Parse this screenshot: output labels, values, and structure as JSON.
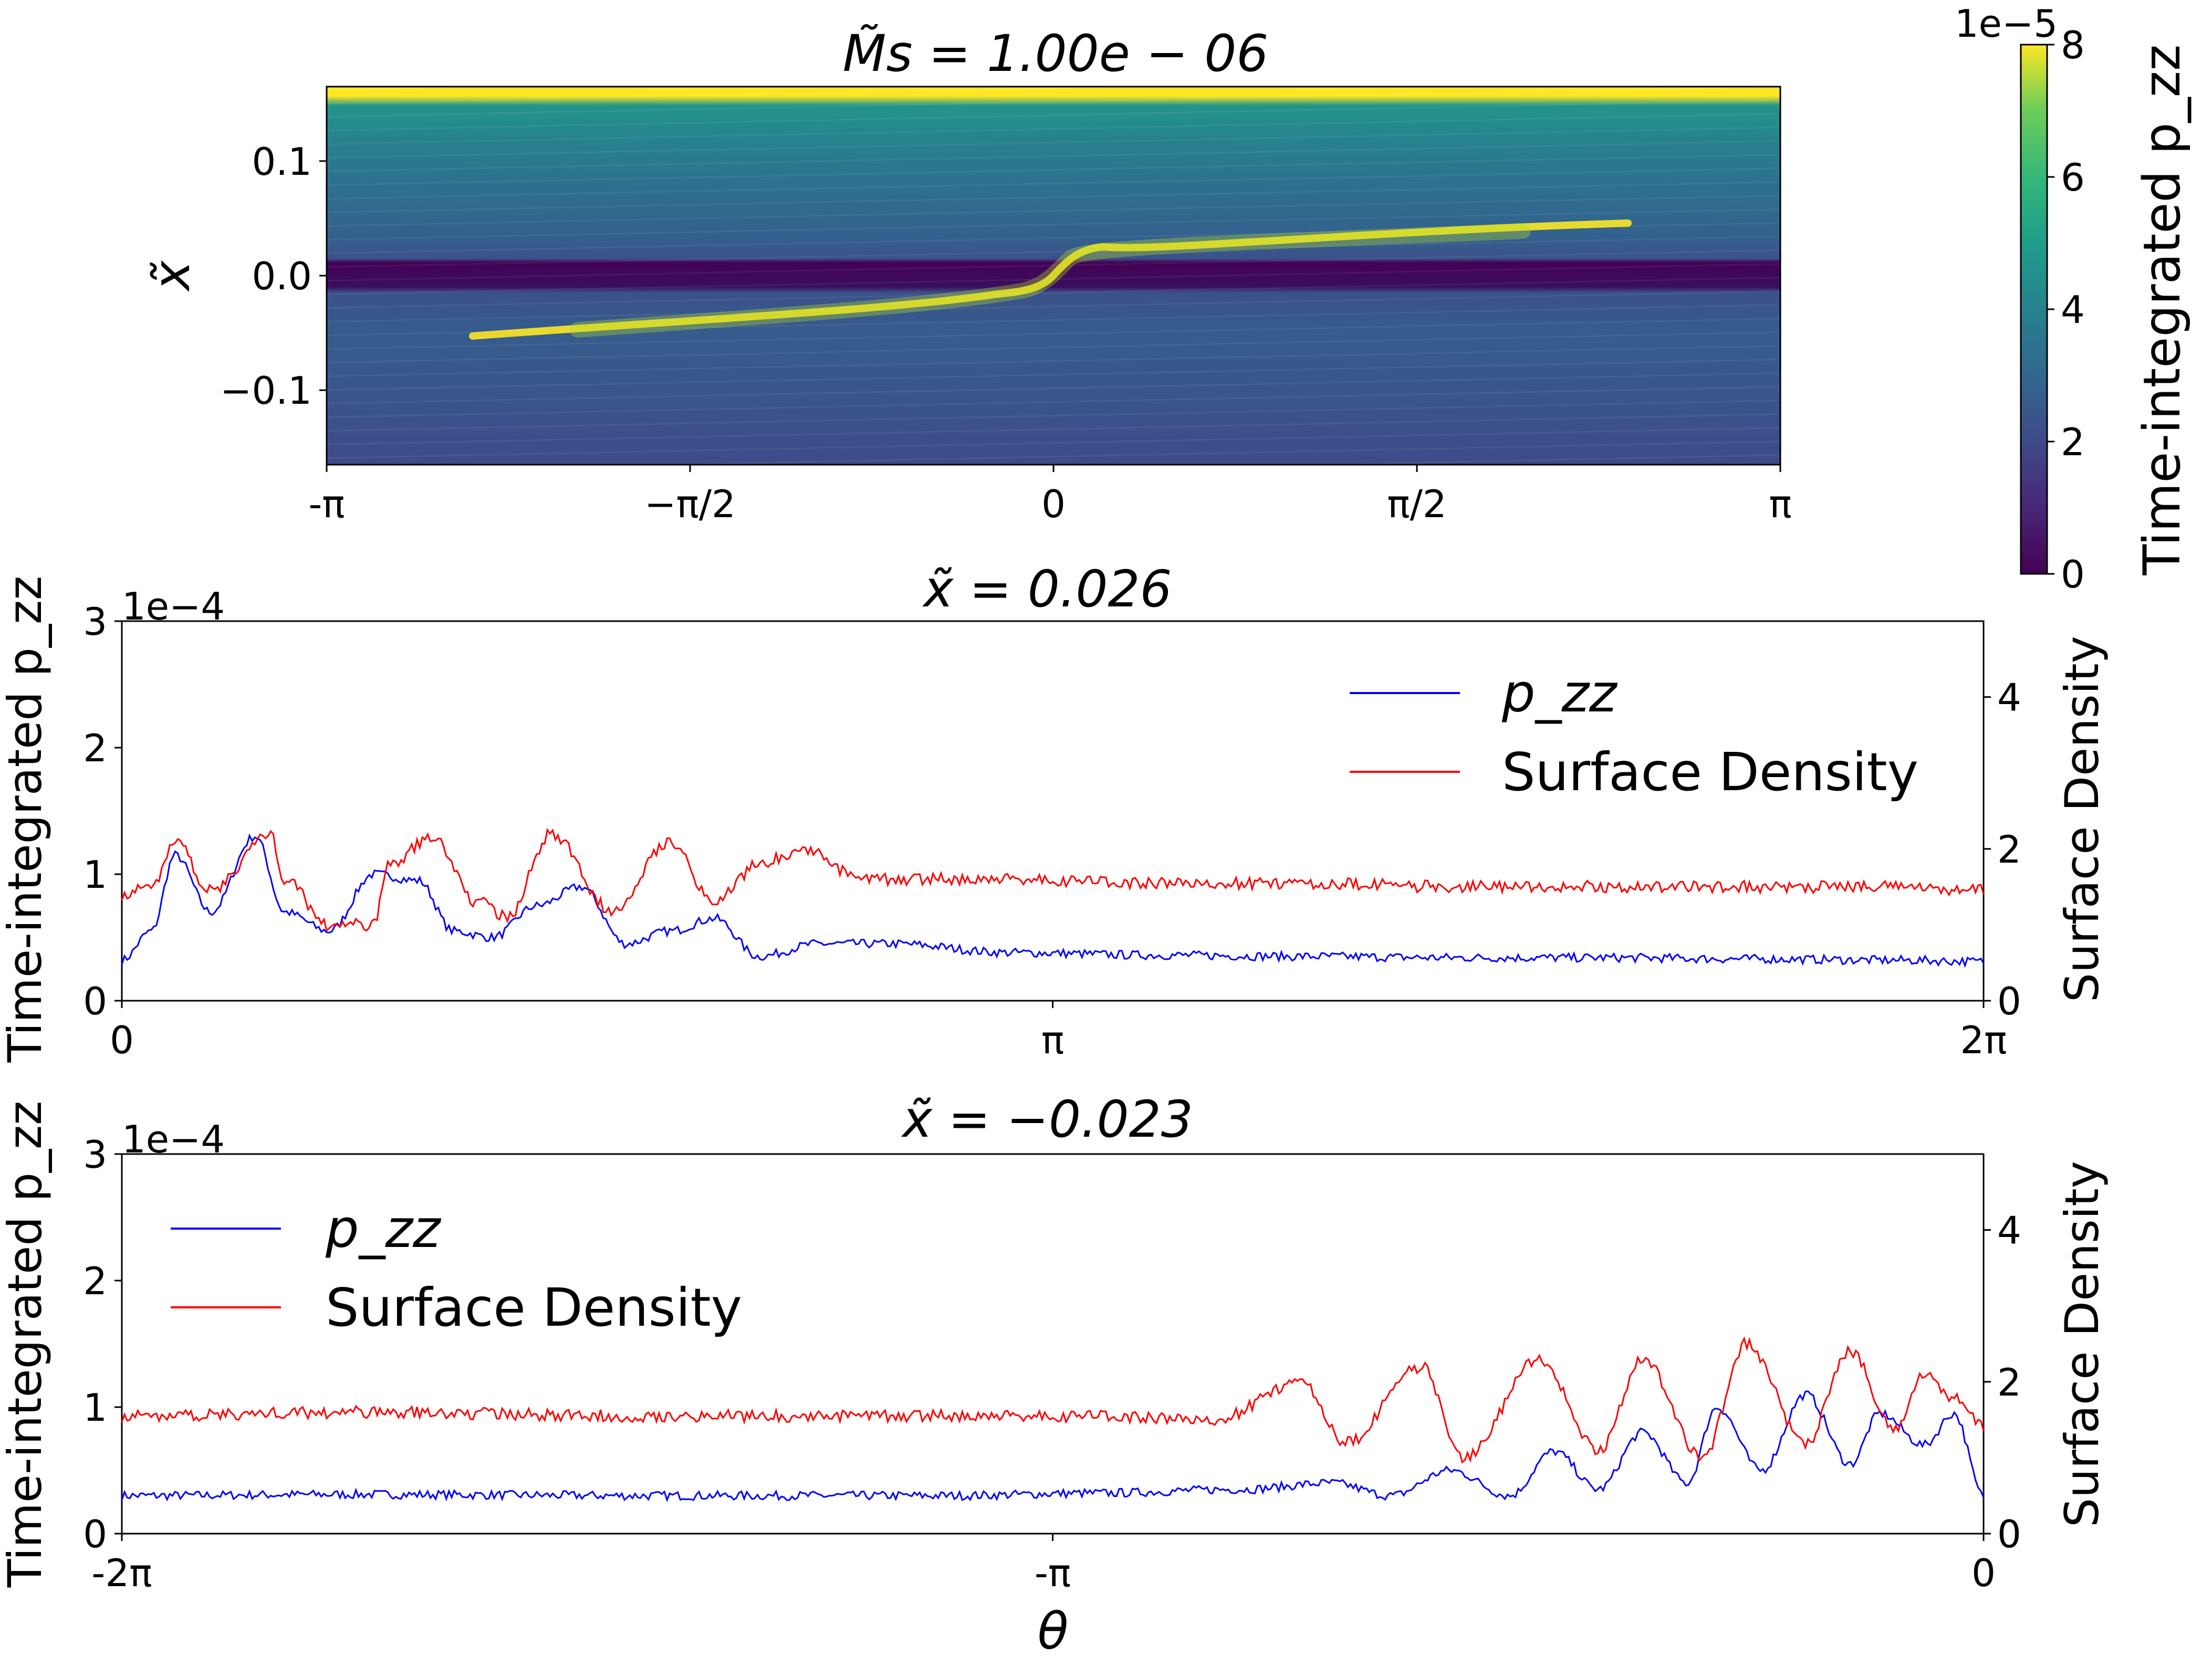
{
  "chart_data": [
    {
      "type": "heatmap",
      "title": "M̃s = 1.00e − 06",
      "ylabel": "x̃",
      "xlim": [
        -3.14159,
        3.14159
      ],
      "ylim": [
        -0.165,
        0.165
      ],
      "x_ticks": [
        "-π",
        "−π/2",
        "0",
        "π/2",
        "π"
      ],
      "y_ticks": [
        "0.1",
        "0.0",
        "−0.1"
      ],
      "y_tick_values": [
        0.1,
        0.0,
        -0.1
      ],
      "colorbar": {
        "label": "Time-integrated p_zz",
        "exponent_label": "1e−5",
        "ticks": [
          "0",
          "2",
          "4",
          "6",
          "8"
        ],
        "range": [
          0,
          8
        ],
        "colormap": "viridis"
      }
    },
    {
      "type": "line",
      "title": "x̃ = 0.026",
      "ylabel": "Time-integrated p_zz",
      "y2label": "Surface Density",
      "y_exponent_label": "1e−4",
      "xlim": [
        0,
        6.2832
      ],
      "ylim": [
        0,
        3
      ],
      "y2lim": [
        0,
        5
      ],
      "x_ticks": [
        "0",
        "π",
        "2π"
      ],
      "y_ticks": [
        "0",
        "1",
        "2",
        "3"
      ],
      "y2_ticks": [
        "0",
        "2",
        "4"
      ],
      "legend_position": "top-right",
      "series": [
        {
          "name": "p_zz",
          "color": "#0000ff",
          "axis": "left",
          "x": [
            0,
            0.1,
            0.18,
            0.3,
            0.45,
            0.55,
            0.7,
            0.85,
            1.0,
            1.12,
            1.25,
            1.4,
            1.55,
            1.7,
            1.85,
            2.0,
            2.15,
            2.35,
            2.6,
            3.0,
            3.5,
            4.0,
            4.5,
            5.0,
            5.5,
            6.0,
            6.2832
          ],
          "values": [
            0.32,
            0.55,
            1.15,
            0.7,
            1.3,
            0.7,
            0.55,
            1.0,
            0.95,
            0.55,
            0.5,
            0.75,
            0.9,
            0.45,
            0.55,
            0.65,
            0.35,
            0.45,
            0.45,
            0.38,
            0.36,
            0.35,
            0.34,
            0.34,
            0.33,
            0.32,
            0.31
          ]
        },
        {
          "name": "Surface Density",
          "color": "#ff0000",
          "axis": "right",
          "x": [
            0,
            0.1,
            0.18,
            0.3,
            0.5,
            0.55,
            0.7,
            0.85,
            0.9,
            1.05,
            1.2,
            1.3,
            1.45,
            1.65,
            1.85,
            2.0,
            2.15,
            2.3,
            2.5,
            2.8,
            3.0,
            3.5,
            4.0,
            4.5,
            5.0,
            5.5,
            6.0,
            6.2832
          ],
          "values": [
            1.4,
            1.5,
            2.1,
            1.45,
            2.2,
            1.6,
            1.0,
            1.0,
            1.8,
            2.15,
            1.3,
            1.1,
            2.2,
            1.2,
            2.1,
            1.3,
            1.8,
            2.0,
            1.6,
            1.6,
            1.6,
            1.55,
            1.55,
            1.5,
            1.5,
            1.5,
            1.5,
            1.45
          ]
        }
      ]
    },
    {
      "type": "line",
      "title": "x̃ = −0.023",
      "xlabel": "θ",
      "ylabel": "Time-integrated p_zz",
      "y2label": "Surface Density",
      "y_exponent_label": "1e−4",
      "xlim": [
        -6.2832,
        0
      ],
      "ylim": [
        0,
        3
      ],
      "y2lim": [
        0,
        5
      ],
      "x_ticks": [
        "-2π",
        "-π",
        "0"
      ],
      "y_ticks": [
        "0",
        "1",
        "2",
        "3"
      ],
      "y2_ticks": [
        "0",
        "2",
        "4"
      ],
      "legend_position": "top-left",
      "series": [
        {
          "name": "p_zz",
          "color": "#0000ff",
          "axis": "left",
          "x": [
            -6.2832,
            -5.5,
            -4.5,
            -3.5,
            -3.0,
            -2.5,
            -2.2,
            -2.0,
            -1.8,
            -1.6,
            -1.45,
            -1.3,
            -1.15,
            -1.0,
            -0.9,
            -0.75,
            -0.6,
            -0.45,
            -0.35,
            -0.2,
            -0.1,
            0
          ],
          "values": [
            0.3,
            0.31,
            0.3,
            0.3,
            0.32,
            0.35,
            0.4,
            0.3,
            0.5,
            0.3,
            0.65,
            0.35,
            0.8,
            0.4,
            1.0,
            0.5,
            1.1,
            0.55,
            0.95,
            0.7,
            0.95,
            0.3
          ]
        },
        {
          "name": "Surface Density",
          "color": "#ff0000",
          "axis": "right",
          "x": [
            -6.2832,
            -5.5,
            -4.5,
            -3.5,
            -3.0,
            -2.6,
            -2.3,
            -2.15,
            -1.9,
            -1.75,
            -1.5,
            -1.3,
            -1.15,
            -0.95,
            -0.8,
            -0.6,
            -0.45,
            -0.3,
            -0.2,
            -0.1,
            0
          ],
          "values": [
            1.55,
            1.6,
            1.55,
            1.55,
            1.55,
            1.5,
            2.0,
            1.2,
            2.2,
            1.0,
            2.3,
            1.1,
            2.3,
            1.0,
            2.5,
            1.2,
            2.4,
            1.35,
            2.1,
            1.8,
            1.4
          ]
        }
      ]
    }
  ]
}
